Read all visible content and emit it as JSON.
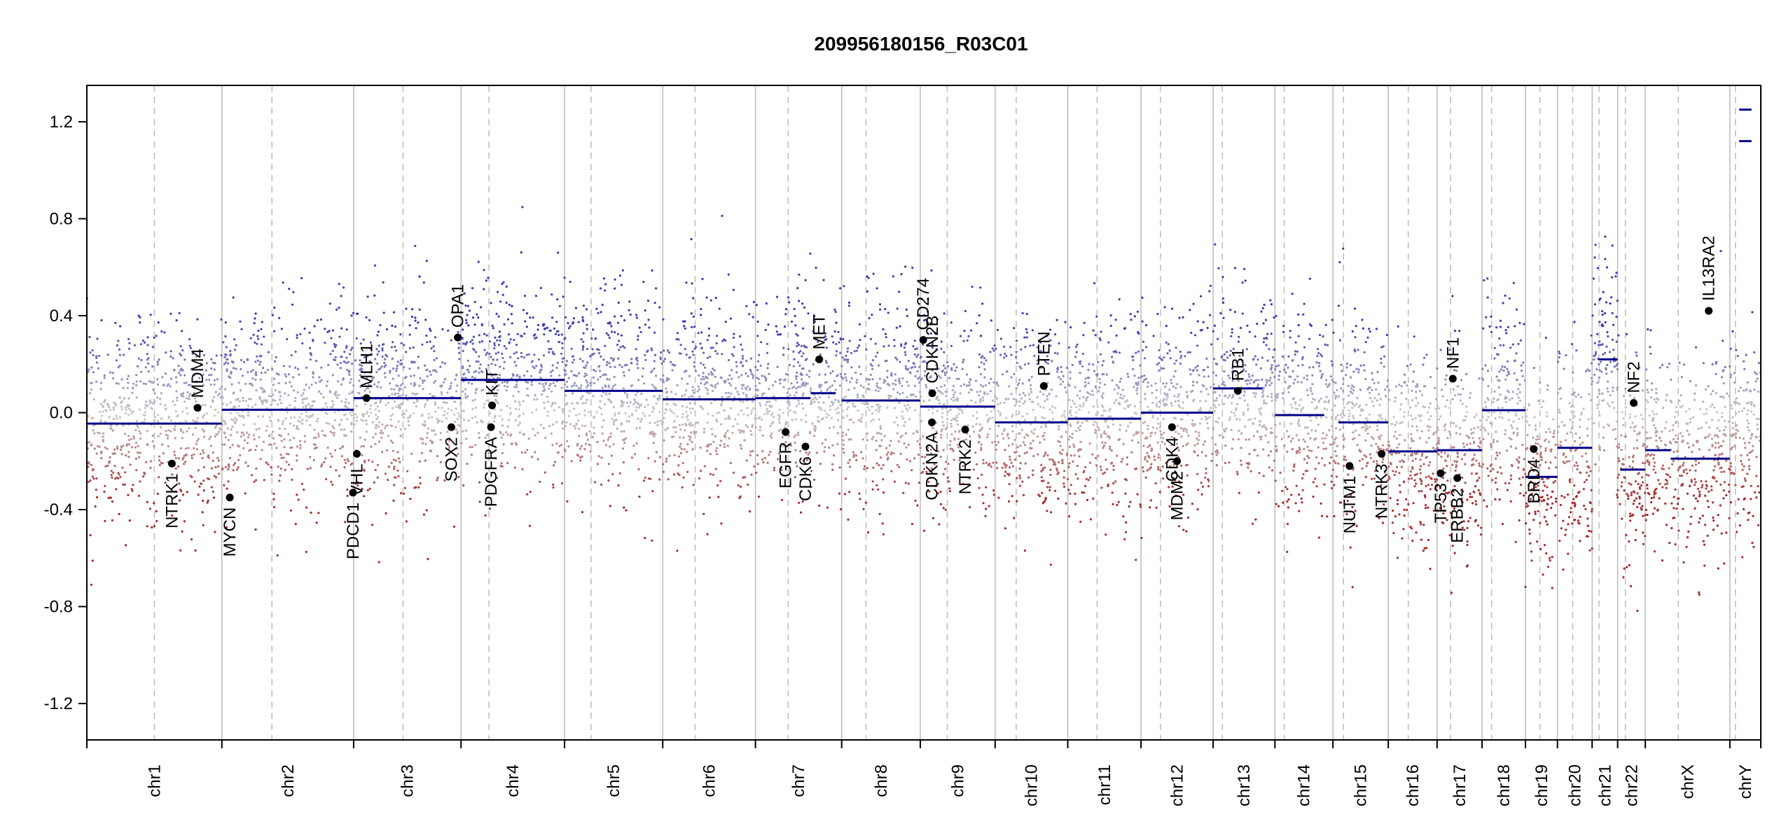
{
  "chart_data": {
    "type": "scatter",
    "title": "209956180156_R03C01",
    "xlabel": "",
    "ylabel": "",
    "ylim": [
      -1.35,
      1.35
    ],
    "yticks": [
      -1.2,
      -0.8,
      -0.4,
      0.0,
      0.4,
      0.8,
      1.2
    ],
    "ytick_labels": [
      "-1.2",
      "-0.8",
      "-0.4",
      "0.0",
      "0.4",
      "0.8",
      "1.2"
    ],
    "colors": {
      "gain": "#3a3ab0",
      "loss": "#a52a2a",
      "segment": "#00008b",
      "axis": "#000000",
      "divider": "#bbbbbb",
      "centromere": "#bbbbbb"
    },
    "chromosomes": [
      {
        "name": "chr1",
        "size": 249,
        "cen": 0.5,
        "segments": [
          [
            0,
            1,
            -0.045
          ]
        ]
      },
      {
        "name": "chr2",
        "size": 243,
        "cen": 0.38,
        "segments": [
          [
            0,
            1,
            0.012
          ]
        ]
      },
      {
        "name": "chr3",
        "size": 198,
        "cen": 0.46,
        "segments": [
          [
            0,
            1,
            0.06
          ]
        ]
      },
      {
        "name": "chr4",
        "size": 191,
        "cen": 0.27,
        "segments": [
          [
            0,
            1,
            0.135
          ]
        ]
      },
      {
        "name": "chr5",
        "size": 181,
        "cen": 0.27,
        "segments": [
          [
            0,
            1,
            0.09
          ]
        ]
      },
      {
        "name": "chr6",
        "size": 171,
        "cen": 0.35,
        "segments": [
          [
            0,
            1,
            0.055
          ]
        ]
      },
      {
        "name": "chr7",
        "size": 159,
        "cen": 0.38,
        "segments": [
          [
            0,
            0.64,
            0.06
          ],
          [
            0.64,
            0.93,
            0.08
          ]
        ]
      },
      {
        "name": "chr8",
        "size": 145,
        "cen": 0.31,
        "segments": [
          [
            0,
            1,
            0.05
          ]
        ]
      },
      {
        "name": "chr9",
        "size": 138,
        "cen": 0.36,
        "segments": [
          [
            0,
            1,
            0.025
          ]
        ]
      },
      {
        "name": "chr10",
        "size": 134,
        "cen": 0.29,
        "segments": [
          [
            0,
            1,
            -0.04
          ]
        ]
      },
      {
        "name": "chr11",
        "size": 135,
        "cen": 0.4,
        "segments": [
          [
            0,
            1,
            -0.025
          ]
        ]
      },
      {
        "name": "chr12",
        "size": 133,
        "cen": 0.27,
        "segments": [
          [
            0,
            1,
            0.0
          ]
        ]
      },
      {
        "name": "chr13",
        "size": 114,
        "cen": 0.15,
        "segments": [
          [
            0,
            0.8,
            0.1
          ]
        ]
      },
      {
        "name": "chr14",
        "size": 107,
        "cen": 0.16,
        "segments": [
          [
            0,
            0.85,
            -0.01
          ]
        ]
      },
      {
        "name": "chr15",
        "size": 102,
        "cen": 0.19,
        "segments": [
          [
            0.1,
            1,
            -0.04
          ]
        ]
      },
      {
        "name": "chr16",
        "size": 90,
        "cen": 0.41,
        "segments": [
          [
            0,
            1,
            -0.16
          ]
        ]
      },
      {
        "name": "chr17",
        "size": 83,
        "cen": 0.3,
        "segments": [
          [
            0,
            1,
            -0.155
          ]
        ]
      },
      {
        "name": "chr18",
        "size": 80,
        "cen": 0.22,
        "segments": [
          [
            0,
            1,
            0.01
          ]
        ]
      },
      {
        "name": "chr19",
        "size": 59,
        "cen": 0.45,
        "segments": [
          [
            0,
            1,
            -0.265
          ]
        ]
      },
      {
        "name": "chr20",
        "size": 64,
        "cen": 0.44,
        "segments": [
          [
            0,
            1,
            -0.145
          ]
        ]
      },
      {
        "name": "chr21",
        "size": 47,
        "cen": 0.27,
        "segments": [
          [
            0.25,
            1,
            0.22
          ]
        ]
      },
      {
        "name": "chr22",
        "size": 51,
        "cen": 0.28,
        "segments": [
          [
            0.1,
            1,
            -0.235
          ]
        ]
      },
      {
        "name": "chrX",
        "size": 156,
        "cen": 0.39,
        "segments": [
          [
            0,
            0.3,
            -0.155
          ],
          [
            0.3,
            1,
            -0.19
          ]
        ]
      },
      {
        "name": "chrY",
        "size": 57,
        "cen": 0.18,
        "segments": [
          [
            0.3,
            0.7,
            1.12
          ],
          [
            0.3,
            0.7,
            1.25
          ]
        ]
      }
    ],
    "genes": [
      {
        "name": "NTRK1",
        "chr": "chr1",
        "pos": 0.63,
        "value": -0.21,
        "label_side": "below"
      },
      {
        "name": "MDM4",
        "chr": "chr1",
        "pos": 0.82,
        "value": 0.02,
        "label_side": "above"
      },
      {
        "name": "MYCN",
        "chr": "chr2",
        "pos": 0.06,
        "value": -0.35,
        "label_side": "below"
      },
      {
        "name": "PDCD1",
        "chr": "chr2",
        "pos": 0.995,
        "value": -0.33,
        "label_side": "below"
      },
      {
        "name": "VHL",
        "chr": "chr3",
        "pos": 0.03,
        "value": -0.17,
        "label_side": "below"
      },
      {
        "name": "MLH1",
        "chr": "chr3",
        "pos": 0.12,
        "value": 0.06,
        "label_side": "above"
      },
      {
        "name": "SOX2",
        "chr": "chr3",
        "pos": 0.91,
        "value": -0.06,
        "label_side": "below"
      },
      {
        "name": "OPA1",
        "chr": "chr3",
        "pos": 0.97,
        "value": 0.31,
        "label_side": "above"
      },
      {
        "name": "PDGFRA",
        "chr": "chr4",
        "pos": 0.29,
        "value": -0.06,
        "label_side": "below"
      },
      {
        "name": "KIT",
        "chr": "chr4",
        "pos": 0.3,
        "value": 0.03,
        "label_side": "above"
      },
      {
        "name": "EGFR",
        "chr": "chr7",
        "pos": 0.35,
        "value": -0.08,
        "label_side": "below"
      },
      {
        "name": "CDK6",
        "chr": "chr7",
        "pos": 0.58,
        "value": -0.14,
        "label_side": "below"
      },
      {
        "name": "MET",
        "chr": "chr7",
        "pos": 0.74,
        "value": 0.22,
        "label_side": "above"
      },
      {
        "name": "CD274",
        "chr": "chr9",
        "pos": 0.04,
        "value": 0.3,
        "label_side": "above"
      },
      {
        "name": "CDKN2B",
        "chr": "chr9",
        "pos": 0.16,
        "value": 0.08,
        "label_side": "above"
      },
      {
        "name": "CDKN2A",
        "chr": "chr9",
        "pos": 0.155,
        "value": -0.04,
        "label_side": "below"
      },
      {
        "name": "NTRK2",
        "chr": "chr9",
        "pos": 0.6,
        "value": -0.07,
        "label_side": "below"
      },
      {
        "name": "PTEN",
        "chr": "chr10",
        "pos": 0.67,
        "value": 0.11,
        "label_side": "above"
      },
      {
        "name": "CDK4",
        "chr": "chr12",
        "pos": 0.43,
        "value": -0.06,
        "label_side": "below"
      },
      {
        "name": "MDM2",
        "chr": "chr12",
        "pos": 0.5,
        "value": -0.2,
        "label_side": "below"
      },
      {
        "name": "RB1",
        "chr": "chr13",
        "pos": 0.4,
        "value": 0.09,
        "label_side": "above"
      },
      {
        "name": "NUTM1",
        "chr": "chr15",
        "pos": 0.3,
        "value": -0.22,
        "label_side": "below"
      },
      {
        "name": "NTRK3",
        "chr": "chr15",
        "pos": 0.88,
        "value": -0.17,
        "label_side": "below"
      },
      {
        "name": "TP53",
        "chr": "chr17",
        "pos": 0.08,
        "value": -0.25,
        "label_side": "below"
      },
      {
        "name": "NF1",
        "chr": "chr17",
        "pos": 0.35,
        "value": 0.14,
        "label_side": "above"
      },
      {
        "name": "ERBB2",
        "chr": "chr17",
        "pos": 0.45,
        "value": -0.27,
        "label_side": "below"
      },
      {
        "name": "BRD4",
        "chr": "chr19",
        "pos": 0.26,
        "value": -0.15,
        "label_side": "below"
      },
      {
        "name": "NF2",
        "chr": "chr22",
        "pos": 0.58,
        "value": 0.04,
        "label_side": "above"
      },
      {
        "name": "IL13RA2",
        "chr": "chrX",
        "pos": 0.75,
        "value": 0.42,
        "label_side": "above"
      }
    ]
  }
}
